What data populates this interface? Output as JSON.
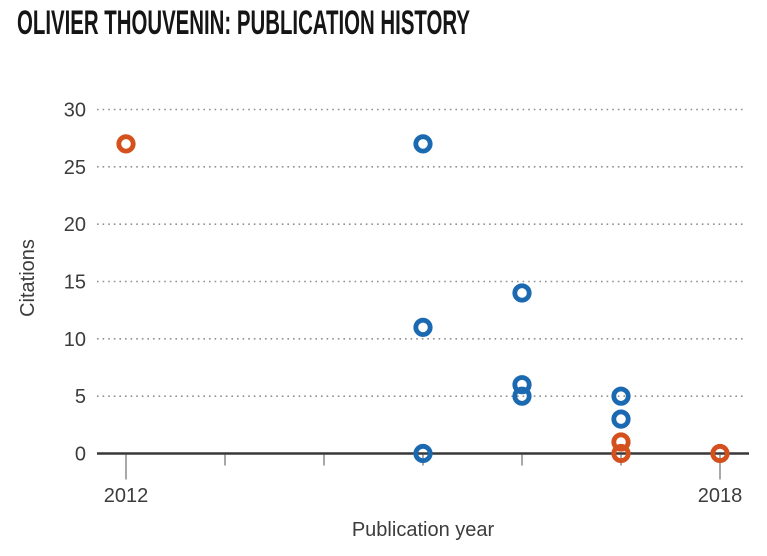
{
  "chart_data": {
    "type": "scatter",
    "title": "OLIVIER THOUVENIN: PUBLICATION HISTORY",
    "xlabel": "Publication year",
    "ylabel": "Citations",
    "x_ticks": [
      2012,
      2013,
      2014,
      2015,
      2016,
      2017,
      2018
    ],
    "x_tick_labels_shown": [
      "2012",
      "2018"
    ],
    "y_ticks": [
      0,
      5,
      10,
      15,
      20,
      25,
      30
    ],
    "ylim": [
      0,
      30
    ],
    "xlim": [
      2011.7,
      2018.3
    ],
    "grid": "horizontal-dotted",
    "legend": "none",
    "marker": "open-circle",
    "series": [
      {
        "name": "blue-publications",
        "color": "#1b6ab1",
        "points": [
          {
            "x": 2015,
            "y": 27
          },
          {
            "x": 2015,
            "y": 11
          },
          {
            "x": 2015,
            "y": 0
          },
          {
            "x": 2016,
            "y": 14
          },
          {
            "x": 2016,
            "y": 6
          },
          {
            "x": 2016,
            "y": 5
          },
          {
            "x": 2017,
            "y": 5
          },
          {
            "x": 2017,
            "y": 3
          }
        ]
      },
      {
        "name": "orange-publications",
        "color": "#d4501c",
        "points": [
          {
            "x": 2012,
            "y": 27
          },
          {
            "x": 2017,
            "y": 1
          },
          {
            "x": 2017,
            "y": 0
          },
          {
            "x": 2018,
            "y": 0
          }
        ]
      }
    ],
    "colors": {
      "axis": "#383838",
      "grid": "#8f8f8f",
      "tick": "#7a7a7a",
      "text": "#3c3c3c",
      "title": "#151515"
    }
  }
}
